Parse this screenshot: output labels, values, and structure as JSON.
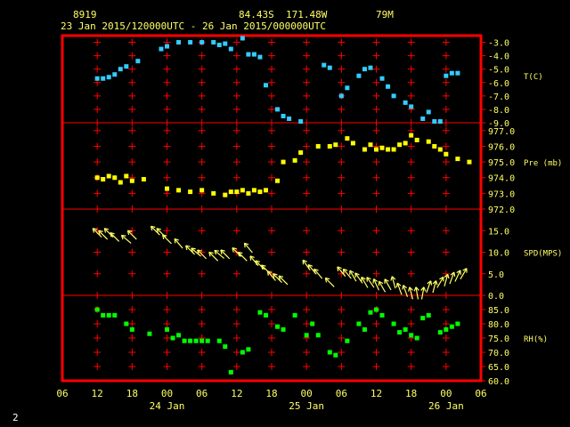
{
  "header": {
    "station": "8919",
    "location": "84.43S  171.48W",
    "elevation": "79M",
    "time_range": "23 Jan 2015/120000UTC - 26 Jan 2015/000000UTC"
  },
  "corner_label": "2",
  "colors": {
    "frame": "#ff0000",
    "grid": "#ff0000",
    "header_text": "#ffff66",
    "axis_text": "#ffff66",
    "temperature": "#33ccff",
    "pressure": "#ffff00",
    "wind": "#ffff66",
    "humidity": "#00ff00"
  },
  "chart_data": {
    "type": "scatter",
    "x_axis": {
      "ticks": [
        "06",
        "12",
        "18",
        "00",
        "06",
        "12",
        "18",
        "00",
        "06",
        "12",
        "18",
        "00",
        "06"
      ],
      "tick_hours": [
        -6,
        0,
        6,
        12,
        18,
        24,
        30,
        36,
        42,
        48,
        54,
        60,
        66
      ],
      "date_labels": [
        {
          "text": "24 Jan",
          "hour": 12
        },
        {
          "text": "25 Jan",
          "hour": 36
        },
        {
          "text": "26 Jan",
          "hour": 60
        }
      ],
      "range_hours": [
        -6,
        66
      ]
    },
    "panels": [
      {
        "name": "temperature",
        "label": "T(C)",
        "ylim": [
          -9,
          -2.5
        ],
        "ticks": [
          "-3.0",
          "-4.0",
          "-5.0",
          "-6.0",
          "-7.0",
          "-8.0",
          "-9.0"
        ],
        "tick_values": [
          -3,
          -4,
          -5,
          -6,
          -7,
          -8,
          -9
        ],
        "marker": "square",
        "points": [
          [
            0,
            -5.7
          ],
          [
            1,
            -5.7
          ],
          [
            2,
            -5.6
          ],
          [
            3,
            -5.4
          ],
          [
            4,
            -5.0
          ],
          [
            5,
            -4.8
          ],
          [
            7,
            -4.4
          ],
          [
            11,
            -3.5
          ],
          [
            12,
            -3.3
          ],
          [
            14,
            -3.0
          ],
          [
            16,
            -3.0
          ],
          [
            18,
            -3.0
          ],
          [
            20,
            -3.0
          ],
          [
            21,
            -3.2
          ],
          [
            22,
            -3.1
          ],
          [
            23,
            -3.5
          ],
          [
            25,
            -2.7
          ],
          [
            26,
            -3.9
          ],
          [
            27,
            -3.9
          ],
          [
            28,
            -4.1
          ],
          [
            29,
            -6.2
          ],
          [
            31,
            -8.0
          ],
          [
            32,
            -8.5
          ],
          [
            33,
            -8.7
          ],
          [
            35,
            -8.9
          ],
          [
            39,
            -4.7
          ],
          [
            40,
            -4.9
          ],
          [
            42,
            -7.0
          ],
          [
            43,
            -6.4
          ],
          [
            45,
            -5.5
          ],
          [
            46,
            -5.0
          ],
          [
            47,
            -4.9
          ],
          [
            49,
            -5.7
          ],
          [
            50,
            -6.3
          ],
          [
            51,
            -7.0
          ],
          [
            53,
            -7.5
          ],
          [
            54,
            -7.8
          ],
          [
            56,
            -8.7
          ],
          [
            57,
            -8.2
          ],
          [
            58,
            -8.9
          ],
          [
            59,
            -8.9
          ],
          [
            60,
            -5.5
          ],
          [
            61,
            -5.3
          ],
          [
            62,
            -5.3
          ]
        ]
      },
      {
        "name": "pressure",
        "label": "Pre (mb)",
        "ylim": [
          972.0,
          977.5
        ],
        "ticks": [
          "977.0",
          "976.0",
          "975.0",
          "974.0",
          "973.0",
          "972.0"
        ],
        "tick_values": [
          977,
          976,
          975,
          974,
          973,
          972
        ],
        "marker": "square",
        "points": [
          [
            0,
            974.0
          ],
          [
            1,
            973.9
          ],
          [
            2,
            974.1
          ],
          [
            3,
            974.0
          ],
          [
            4,
            973.7
          ],
          [
            5,
            974.1
          ],
          [
            6,
            973.8
          ],
          [
            8,
            973.9
          ],
          [
            12,
            973.3
          ],
          [
            14,
            973.2
          ],
          [
            16,
            973.1
          ],
          [
            18,
            973.2
          ],
          [
            20,
            973.0
          ],
          [
            22,
            972.9
          ],
          [
            23,
            973.1
          ],
          [
            24,
            973.1
          ],
          [
            25,
            973.2
          ],
          [
            26,
            973.0
          ],
          [
            27,
            973.2
          ],
          [
            28,
            973.1
          ],
          [
            29,
            973.2
          ],
          [
            31,
            973.8
          ],
          [
            32,
            975.0
          ],
          [
            34,
            975.1
          ],
          [
            35,
            975.6
          ],
          [
            38,
            976.0
          ],
          [
            40,
            976.0
          ],
          [
            41,
            976.1
          ],
          [
            43,
            976.5
          ],
          [
            44,
            976.2
          ],
          [
            46,
            975.8
          ],
          [
            47,
            976.1
          ],
          [
            48,
            975.8
          ],
          [
            49,
            975.9
          ],
          [
            50,
            975.8
          ],
          [
            51,
            975.8
          ],
          [
            52,
            976.1
          ],
          [
            53,
            976.2
          ],
          [
            54,
            976.7
          ],
          [
            55,
            976.4
          ],
          [
            57,
            976.3
          ],
          [
            58,
            976.0
          ],
          [
            59,
            975.8
          ],
          [
            60,
            975.5
          ],
          [
            62,
            975.2
          ],
          [
            64,
            975.0
          ]
        ]
      },
      {
        "name": "wind",
        "label": "SPD(MPS)",
        "ylim": [
          0,
          20
        ],
        "ticks": [
          "15.0",
          "10.0",
          "5.0",
          "0.0"
        ],
        "tick_values": [
          15,
          10,
          5,
          0
        ],
        "marker": "arrow",
        "points": [
          [
            0,
            14.5,
            135
          ],
          [
            1,
            14.0,
            135
          ],
          [
            2,
            14.5,
            135
          ],
          [
            3,
            13.5,
            135
          ],
          [
            5,
            13.0,
            140
          ],
          [
            6,
            14.0,
            135
          ],
          [
            10,
            15.0,
            135
          ],
          [
            11,
            14.5,
            135
          ],
          [
            12,
            13.0,
            135
          ],
          [
            14,
            12.0,
            130
          ],
          [
            16,
            10.5,
            135
          ],
          [
            17,
            10.0,
            140
          ],
          [
            18,
            9.5,
            135
          ],
          [
            20,
            9.0,
            135
          ],
          [
            21,
            9.5,
            140
          ],
          [
            22,
            9.5,
            135
          ],
          [
            24,
            10.0,
            135
          ],
          [
            25,
            9.0,
            135
          ],
          [
            26,
            11.0,
            130
          ],
          [
            27,
            8.0,
            130
          ],
          [
            28,
            7.0,
            135
          ],
          [
            29,
            6.0,
            135
          ],
          [
            30,
            4.5,
            130
          ],
          [
            31,
            4.0,
            135
          ],
          [
            32,
            3.5,
            135
          ],
          [
            36,
            7.0,
            125
          ],
          [
            37,
            6.0,
            130
          ],
          [
            38,
            5.0,
            130
          ],
          [
            40,
            3.0,
            135
          ],
          [
            42,
            5.5,
            130
          ],
          [
            43,
            5.0,
            130
          ],
          [
            44,
            4.5,
            120
          ],
          [
            45,
            4.0,
            125
          ],
          [
            46,
            3.0,
            120
          ],
          [
            47,
            3.0,
            125
          ],
          [
            48,
            2.5,
            115
          ],
          [
            49,
            2.0,
            120
          ],
          [
            50,
            2.5,
            120
          ],
          [
            51,
            3.0,
            105
          ],
          [
            52,
            1.5,
            110
          ],
          [
            53,
            1.0,
            110
          ],
          [
            54,
            0.5,
            105
          ],
          [
            55,
            0.5,
            100
          ],
          [
            56,
            0.5,
            80
          ],
          [
            57,
            2.0,
            70
          ],
          [
            58,
            2.0,
            75
          ],
          [
            59,
            3.0,
            60
          ],
          [
            60,
            3.5,
            75
          ],
          [
            61,
            4.0,
            70
          ],
          [
            62,
            4.5,
            65
          ],
          [
            63,
            5.0,
            60
          ]
        ]
      },
      {
        "name": "humidity",
        "label": "RH(%)",
        "ylim": [
          60,
          90
        ],
        "ticks": [
          "85.0",
          "80.0",
          "75.0",
          "70.0",
          "65.0",
          "60.0"
        ],
        "tick_values": [
          85,
          80,
          75,
          70,
          65,
          60
        ],
        "marker": "square",
        "points": [
          [
            0,
            85.0
          ],
          [
            1,
            83.0
          ],
          [
            2,
            83.0
          ],
          [
            3,
            83.0
          ],
          [
            5,
            80.0
          ],
          [
            6,
            78.0
          ],
          [
            9,
            76.5
          ],
          [
            12,
            78.0
          ],
          [
            13,
            75.0
          ],
          [
            14,
            76.0
          ],
          [
            15,
            74.0
          ],
          [
            16,
            74.0
          ],
          [
            17,
            74.0
          ],
          [
            18,
            74.0
          ],
          [
            19,
            74.0
          ],
          [
            21,
            74.0
          ],
          [
            22,
            72.0
          ],
          [
            23,
            63.0
          ],
          [
            25,
            70.0
          ],
          [
            26,
            71.0
          ],
          [
            28,
            84.0
          ],
          [
            29,
            83.0
          ],
          [
            31,
            79.0
          ],
          [
            32,
            78.0
          ],
          [
            34,
            83.0
          ],
          [
            36,
            76.0
          ],
          [
            37,
            80.0
          ],
          [
            38,
            76.0
          ],
          [
            40,
            70.0
          ],
          [
            41,
            69.0
          ],
          [
            43,
            74.0
          ],
          [
            45,
            80.0
          ],
          [
            46,
            78.0
          ],
          [
            47,
            84.0
          ],
          [
            48,
            85.0
          ],
          [
            49,
            83.0
          ],
          [
            51,
            80.0
          ],
          [
            52,
            77.0
          ],
          [
            53,
            78.0
          ],
          [
            54,
            76.0
          ],
          [
            55,
            75.0
          ],
          [
            56,
            82.0
          ],
          [
            57,
            83.0
          ],
          [
            59,
            77.0
          ],
          [
            60,
            78.0
          ],
          [
            61,
            79.0
          ],
          [
            62,
            80.0
          ]
        ]
      }
    ]
  }
}
